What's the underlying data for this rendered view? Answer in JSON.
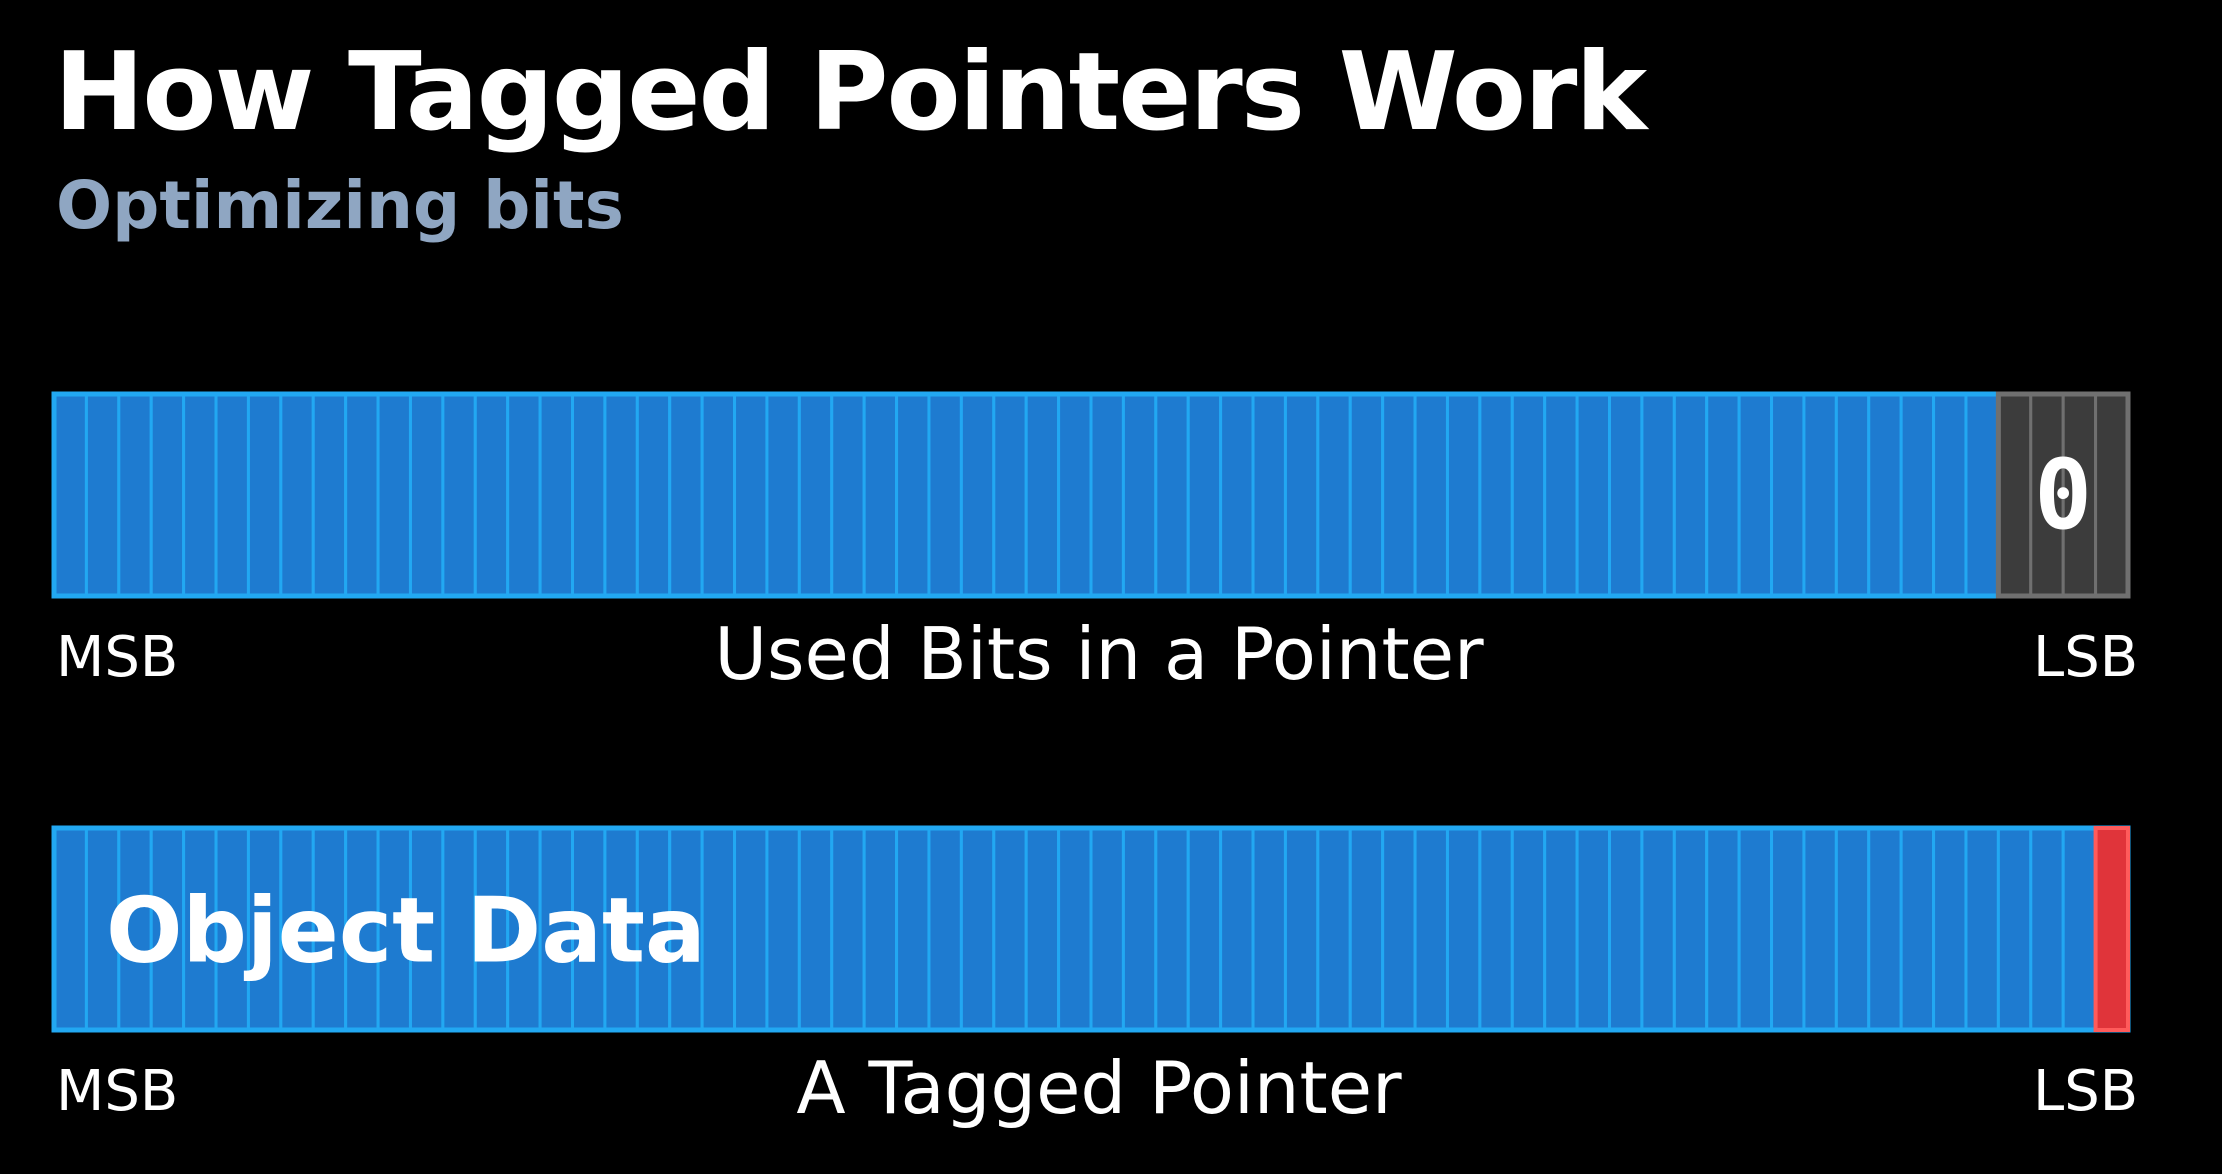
{
  "title": "How Tagged Pointers Work",
  "subtitle": "Optimizing bits",
  "diagrams": [
    {
      "id": "used-bits",
      "caption": "Used Bits in a Pointer",
      "msb_label": "MSB",
      "lsb_label": "LSB",
      "total_bits": 64,
      "low_bits_count": 4,
      "low_bits_value": "0",
      "colors": {
        "used": "#1e7bd0",
        "used_line": "#22a8f2",
        "low": "#3c3c3c",
        "low_line": "#707070"
      }
    },
    {
      "id": "tagged-pointer",
      "caption": "A Tagged Pointer",
      "msb_label": "MSB",
      "lsb_label": "LSB",
      "total_bits": 64,
      "tag_bits_count": 1,
      "data_label": "Object Data",
      "colors": {
        "data": "#1e7bd0",
        "data_line": "#22a8f2",
        "tag": "#e0343a",
        "tag_line": "#ff5b5b"
      }
    }
  ]
}
